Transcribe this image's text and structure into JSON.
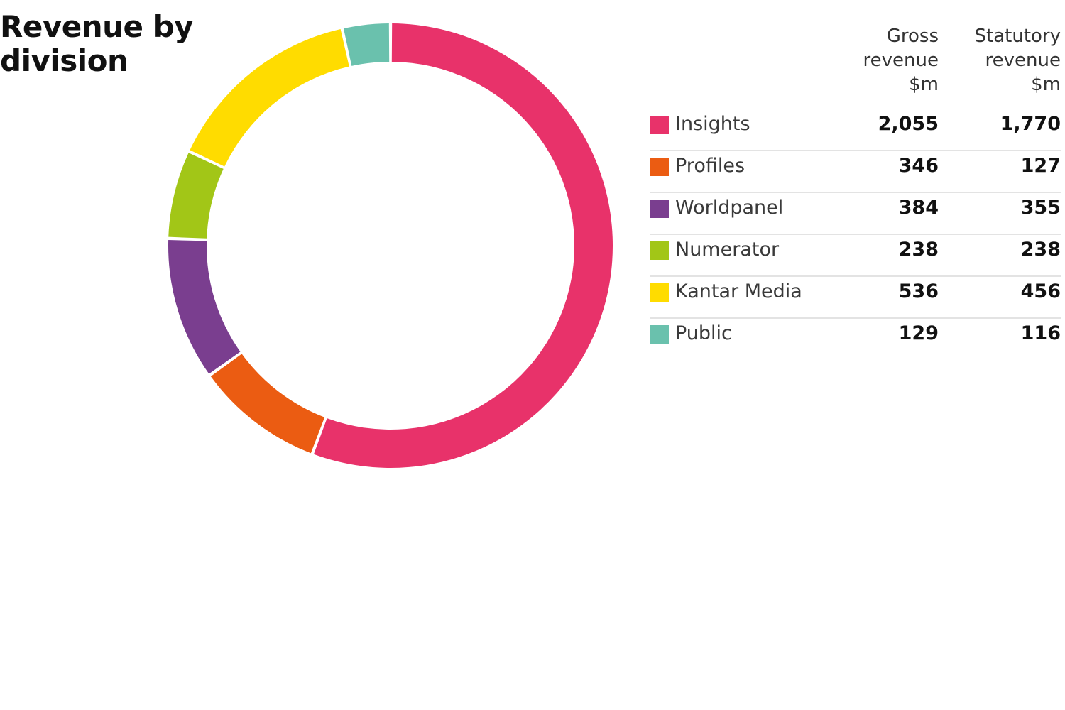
{
  "chart_data": {
    "type": "pie",
    "title": "Revenue by division",
    "donut": true,
    "column_headers": [
      "Gross\nrevenue\n$m",
      "Statutory\nrevenue\n$m"
    ],
    "categories": [
      "Insights",
      "Profiles",
      "Worldpanel",
      "Numerator",
      "Kantar Media",
      "Public"
    ],
    "series": [
      {
        "name": "Gross revenue $m",
        "values": [
          2055,
          346,
          384,
          238,
          536,
          129
        ]
      },
      {
        "name": "Statutory revenue $m",
        "values": [
          1770,
          127,
          355,
          238,
          456,
          116
        ]
      }
    ],
    "display_values": {
      "gross": [
        "2,055",
        "346",
        "384",
        "238",
        "536",
        "129"
      ],
      "statutory": [
        "1,770",
        "127",
        "355",
        "238",
        "456",
        "116"
      ]
    },
    "colors": [
      "#e8326a",
      "#eb5c12",
      "#7a3e8f",
      "#a2c617",
      "#ffdc00",
      "#6ac1ad"
    ],
    "legend": "right"
  }
}
